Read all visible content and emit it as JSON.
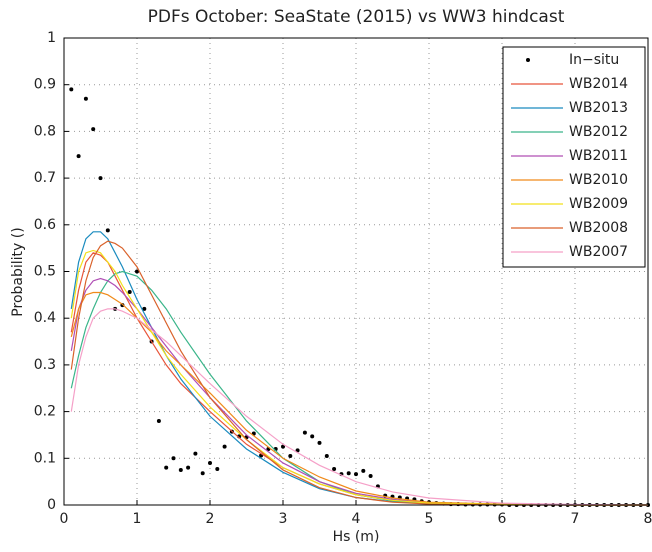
{
  "chart_data": {
    "type": "line",
    "title": "PDFs October: SeaState (2015) vs WW3 hindcast",
    "x_label": "Hs (m)",
    "y_label": "Probability ()",
    "xlim": [
      0,
      8
    ],
    "xticks": [
      0,
      1,
      2,
      3,
      4,
      5,
      6,
      7,
      8
    ],
    "ylim": [
      0,
      1
    ],
    "yticks": [
      0,
      0.1,
      0.2,
      0.3,
      0.4,
      0.5,
      0.6,
      0.7,
      0.8,
      0.9,
      1
    ],
    "grid": true,
    "legend": "upper-right",
    "series": [
      {
        "name": "In−situ",
        "color": "#000000",
        "mode": "markers",
        "x": [
          0.1,
          0.2,
          0.3,
          0.4,
          0.5,
          0.6,
          0.7,
          0.8,
          0.9,
          1,
          1.1,
          1.2,
          1.3,
          1.4,
          1.5,
          1.6,
          1.7,
          1.8,
          1.9,
          2,
          2.1,
          2.2,
          2.3,
          2.4,
          2.5,
          2.6,
          2.7,
          2.8,
          2.9,
          3,
          3.1,
          3.2,
          3.3,
          3.4,
          3.5,
          3.6,
          3.7,
          3.8,
          3.9,
          4,
          4.1,
          4.2,
          4.3,
          4.4,
          4.5,
          4.6,
          4.7,
          4.8,
          4.9,
          5,
          5.1,
          5.2,
          5.3,
          5.4,
          5.5,
          5.6,
          5.7,
          5.8,
          5.9,
          6,
          6.1,
          6.2,
          6.3,
          6.4,
          6.5,
          6.6,
          6.7,
          6.8,
          6.9,
          7,
          7.1,
          7.2,
          7.3,
          7.4,
          7.5,
          7.6,
          7.7,
          7.8,
          7.9,
          8
        ],
        "values": [
          0.89,
          0.747,
          0.87,
          0.805,
          0.7,
          0.588,
          0.42,
          0.428,
          0.456,
          0.5,
          0.42,
          0.35,
          0.18,
          0.08,
          0.1,
          0.075,
          0.08,
          0.11,
          0.068,
          0.09,
          0.077,
          0.125,
          0.157,
          0.147,
          0.145,
          0.153,
          0.106,
          0.12,
          0.12,
          0.125,
          0.105,
          0.117,
          0.155,
          0.147,
          0.133,
          0.105,
          0.077,
          0.066,
          0.068,
          0.066,
          0.073,
          0.062,
          0.04,
          0.02,
          0.018,
          0.016,
          0.014,
          0.012,
          0.008,
          0.006,
          0.004,
          0.003,
          0.002,
          0.002,
          0.001,
          0.001,
          0.001,
          0.001,
          0.001,
          0.001,
          0,
          0,
          0,
          0,
          0,
          0,
          0,
          0,
          0,
          0,
          0,
          0,
          0,
          0,
          0,
          0,
          0,
          0,
          0,
          0
        ]
      },
      {
        "name": "WB2014",
        "color": "#e8553a",
        "mode": "lines",
        "x": [
          0.1,
          0.2,
          0.3,
          0.4,
          0.5,
          0.6,
          0.7,
          0.8,
          1,
          1.2,
          1.4,
          1.6,
          2,
          2.5,
          3,
          3.5,
          4,
          4.5,
          5,
          6,
          7,
          8
        ],
        "values": [
          0.37,
          0.46,
          0.52,
          0.54,
          0.535,
          0.52,
          0.49,
          0.46,
          0.4,
          0.35,
          0.3,
          0.26,
          0.2,
          0.13,
          0.08,
          0.045,
          0.022,
          0.01,
          0.004,
          0.001,
          0,
          0
        ]
      },
      {
        "name": "WB2013",
        "color": "#1a8bbf",
        "mode": "lines",
        "x": [
          0.1,
          0.2,
          0.3,
          0.4,
          0.5,
          0.6,
          0.7,
          0.8,
          1,
          1.2,
          1.4,
          1.6,
          2,
          2.5,
          3,
          3.5,
          4,
          4.5,
          5,
          6,
          7,
          8
        ],
        "values": [
          0.42,
          0.52,
          0.57,
          0.585,
          0.585,
          0.57,
          0.54,
          0.51,
          0.44,
          0.38,
          0.32,
          0.27,
          0.19,
          0.12,
          0.07,
          0.035,
          0.016,
          0.007,
          0.003,
          0.001,
          0,
          0
        ]
      },
      {
        "name": "WB2012",
        "color": "#3ab58a",
        "mode": "lines",
        "x": [
          0.1,
          0.2,
          0.3,
          0.4,
          0.5,
          0.6,
          0.7,
          0.8,
          1,
          1.2,
          1.4,
          1.6,
          2,
          2.5,
          3,
          3.5,
          4,
          4.5,
          5,
          6,
          7,
          8
        ],
        "values": [
          0.25,
          0.32,
          0.38,
          0.42,
          0.455,
          0.48,
          0.495,
          0.5,
          0.49,
          0.46,
          0.42,
          0.37,
          0.28,
          0.18,
          0.1,
          0.05,
          0.022,
          0.009,
          0.003,
          0.001,
          0,
          0
        ]
      },
      {
        "name": "WB2011",
        "color": "#b04fb5",
        "mode": "lines",
        "x": [
          0.1,
          0.2,
          0.3,
          0.4,
          0.5,
          0.6,
          0.7,
          0.8,
          1,
          1.2,
          1.4,
          1.6,
          2,
          2.5,
          3,
          3.5,
          4,
          4.5,
          5,
          6,
          7,
          8
        ],
        "values": [
          0.33,
          0.42,
          0.46,
          0.48,
          0.485,
          0.48,
          0.47,
          0.455,
          0.42,
          0.38,
          0.34,
          0.3,
          0.23,
          0.15,
          0.09,
          0.05,
          0.025,
          0.012,
          0.005,
          0.001,
          0,
          0
        ]
      },
      {
        "name": "WB2010",
        "color": "#f08a1a",
        "mode": "lines",
        "x": [
          0.1,
          0.2,
          0.3,
          0.4,
          0.5,
          0.6,
          0.7,
          0.8,
          1,
          1.2,
          1.4,
          1.6,
          2,
          2.5,
          3,
          3.5,
          4,
          4.5,
          5,
          6,
          7,
          8
        ],
        "values": [
          0.36,
          0.42,
          0.45,
          0.455,
          0.455,
          0.45,
          0.44,
          0.43,
          0.4,
          0.37,
          0.33,
          0.3,
          0.24,
          0.16,
          0.1,
          0.06,
          0.03,
          0.015,
          0.006,
          0.002,
          0,
          0
        ]
      },
      {
        "name": "WB2009",
        "color": "#f2e01a",
        "mode": "lines",
        "x": [
          0.1,
          0.2,
          0.3,
          0.4,
          0.5,
          0.6,
          0.7,
          0.8,
          1,
          1.2,
          1.4,
          1.6,
          2,
          2.5,
          3,
          3.5,
          4,
          4.5,
          5,
          6,
          7,
          8
        ],
        "values": [
          0.4,
          0.5,
          0.54,
          0.545,
          0.54,
          0.52,
          0.5,
          0.47,
          0.42,
          0.37,
          0.32,
          0.28,
          0.21,
          0.14,
          0.08,
          0.045,
          0.022,
          0.01,
          0.004,
          0.001,
          0,
          0
        ]
      },
      {
        "name": "WB2008",
        "color": "#d9622b",
        "mode": "lines",
        "x": [
          0.1,
          0.2,
          0.3,
          0.4,
          0.5,
          0.6,
          0.7,
          0.8,
          1,
          1.2,
          1.4,
          1.6,
          2,
          2.5,
          3,
          3.5,
          4,
          4.5,
          5,
          6,
          7,
          8
        ],
        "values": [
          0.29,
          0.4,
          0.48,
          0.53,
          0.555,
          0.565,
          0.56,
          0.55,
          0.51,
          0.45,
          0.39,
          0.33,
          0.23,
          0.14,
          0.075,
          0.037,
          0.016,
          0.006,
          0.002,
          0,
          0,
          0
        ]
      },
      {
        "name": "WB2007",
        "color": "#f5a0c8",
        "mode": "lines",
        "x": [
          0.1,
          0.2,
          0.3,
          0.4,
          0.5,
          0.6,
          0.7,
          0.8,
          1,
          1.2,
          1.4,
          1.6,
          2,
          2.5,
          3,
          3.5,
          4,
          4.5,
          5,
          6,
          7,
          8
        ],
        "values": [
          0.2,
          0.3,
          0.36,
          0.4,
          0.415,
          0.42,
          0.42,
          0.415,
          0.4,
          0.375,
          0.35,
          0.32,
          0.26,
          0.19,
          0.13,
          0.085,
          0.05,
          0.028,
          0.015,
          0.004,
          0.001,
          0
        ]
      }
    ]
  }
}
